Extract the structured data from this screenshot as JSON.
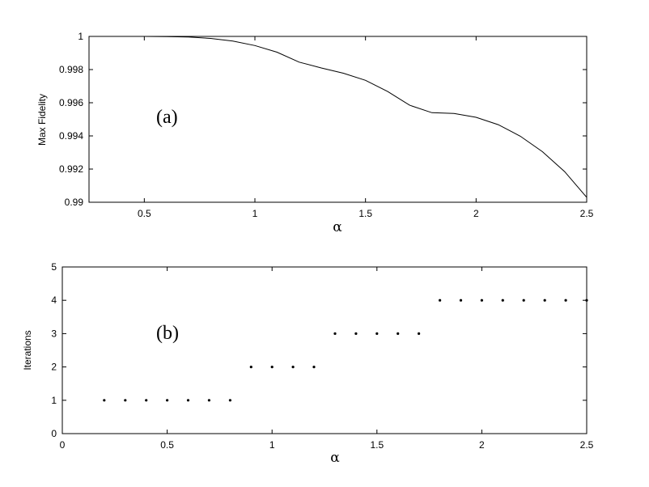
{
  "chart_data": [
    {
      "type": "line",
      "panel_label": "(a)",
      "xlabel": "α",
      "ylabel": "Max Fidelity",
      "xlim": [
        0.25,
        2.5
      ],
      "ylim": [
        0.99,
        1.0
      ],
      "xticks": [
        0.5,
        1,
        1.5,
        2,
        2.5
      ],
      "xtick_labels": [
        "0.5",
        "1",
        "1.5",
        "2",
        "2.5"
      ],
      "yticks": [
        0.99,
        0.992,
        0.994,
        0.996,
        0.998,
        1.0
      ],
      "ytick_labels": [
        "0.99",
        "0.992",
        "0.994",
        "0.996",
        "0.998",
        "1"
      ],
      "grid": false,
      "series": [
        {
          "x": [
            0.25,
            0.5,
            0.6,
            0.7,
            0.8,
            0.9,
            1.0,
            1.1,
            1.2,
            1.3,
            1.4,
            1.5,
            1.6,
            1.7,
            1.8,
            1.9,
            2.0,
            2.1,
            2.2,
            2.3,
            2.4,
            2.5
          ],
          "y": [
            1.0,
            1.0,
            0.99999,
            0.99996,
            0.99988,
            0.99972,
            0.99945,
            0.99905,
            0.99845,
            0.9981,
            0.99778,
            0.99735,
            0.99668,
            0.99585,
            0.9954,
            0.99535,
            0.99512,
            0.99468,
            0.99398,
            0.99305,
            0.99185,
            0.9903
          ]
        }
      ]
    },
    {
      "type": "scatter",
      "panel_label": "(b)",
      "xlabel": "α",
      "ylabel": "Iterations",
      "xlim": [
        0,
        2.5
      ],
      "ylim": [
        0,
        5
      ],
      "xticks": [
        0,
        0.5,
        1,
        1.5,
        2,
        2.5
      ],
      "xtick_labels": [
        "0",
        "0.5",
        "1",
        "1.5",
        "2",
        "2.5"
      ],
      "yticks": [
        0,
        1,
        2,
        3,
        4,
        5
      ],
      "ytick_labels": [
        "0",
        "1",
        "2",
        "3",
        "4",
        "5"
      ],
      "grid": false,
      "series": [
        {
          "x": [
            0.2,
            0.3,
            0.4,
            0.5,
            0.6,
            0.7,
            0.8,
            0.9,
            1.0,
            1.1,
            1.2,
            1.3,
            1.4,
            1.5,
            1.6,
            1.7,
            1.8,
            1.9,
            2.0,
            2.1,
            2.2,
            2.3,
            2.4,
            2.5
          ],
          "y": [
            1,
            1,
            1,
            1,
            1,
            1,
            1,
            2,
            2,
            2,
            2,
            3,
            3,
            3,
            3,
            3,
            4,
            4,
            4,
            4,
            4,
            4,
            4,
            4
          ]
        }
      ]
    }
  ]
}
